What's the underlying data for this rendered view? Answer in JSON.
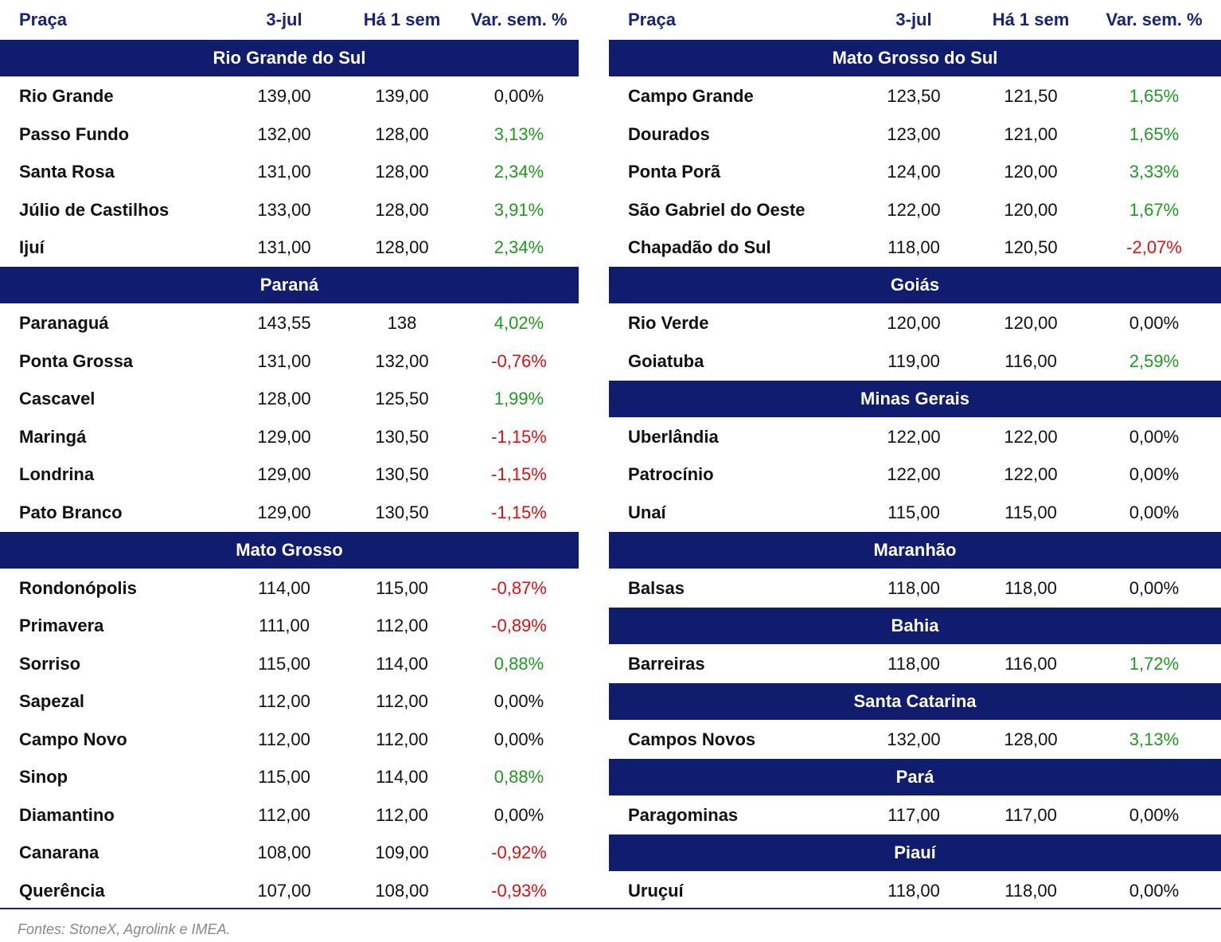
{
  "tables": [
    {
      "header": [
        "Praça",
        "3-jul",
        "Há 1 sem",
        "Var. sem. %"
      ],
      "sections": [
        {
          "title": "Rio Grande do Sul",
          "rows": [
            [
              "Rio Grande",
              "139,00",
              "139,00",
              "0,00%"
            ],
            [
              "Passo Fundo",
              "132,00",
              "128,00",
              "3,13%"
            ],
            [
              "Santa Rosa",
              "131,00",
              "128,00",
              "2,34%"
            ],
            [
              "Júlio de Castilhos",
              "133,00",
              "128,00",
              "3,91%"
            ],
            [
              "Ijuí",
              "131,00",
              "128,00",
              "2,34%"
            ]
          ]
        },
        {
          "title": "Paraná",
          "rows": [
            [
              "Paranaguá",
              "143,55",
              "138",
              "4,02%"
            ],
            [
              "Ponta Grossa",
              "131,00",
              "132,00",
              "-0,76%"
            ],
            [
              "Cascavel",
              "128,00",
              "125,50",
              "1,99%"
            ],
            [
              "Maringá",
              "129,00",
              "130,50",
              "-1,15%"
            ],
            [
              "Londrina",
              "129,00",
              "130,50",
              "-1,15%"
            ],
            [
              "Pato Branco",
              "129,00",
              "130,50",
              "-1,15%"
            ]
          ]
        },
        {
          "title": "Mato Grosso",
          "rows": [
            [
              "Rondonópolis",
              "114,00",
              "115,00",
              "-0,87%"
            ],
            [
              "Primavera",
              "111,00",
              "112,00",
              "-0,89%"
            ],
            [
              "Sorriso",
              "115,00",
              "114,00",
              "0,88%"
            ],
            [
              "Sapezal",
              "112,00",
              "112,00",
              "0,00%"
            ],
            [
              "Campo Novo",
              "112,00",
              "112,00",
              "0,00%"
            ],
            [
              "Sinop",
              "115,00",
              "114,00",
              "0,88%"
            ],
            [
              "Diamantino",
              "112,00",
              "112,00",
              "0,00%"
            ],
            [
              "Canarana",
              "108,00",
              "109,00",
              "-0,92%"
            ],
            [
              "Querência",
              "107,00",
              "108,00",
              "-0,93%"
            ]
          ]
        }
      ]
    },
    {
      "header": [
        "Praça",
        "3-jul",
        "Há 1 sem",
        "Var. sem. %"
      ],
      "sections": [
        {
          "title": "Mato Grosso do Sul",
          "rows": [
            [
              "Campo Grande",
              "123,50",
              "121,50",
              "1,65%"
            ],
            [
              "Dourados",
              "123,00",
              "121,00",
              "1,65%"
            ],
            [
              "Ponta Porã",
              "124,00",
              "120,00",
              "3,33%"
            ],
            [
              "São Gabriel do Oeste",
              "122,00",
              "120,00",
              "1,67%"
            ],
            [
              "Chapadão do Sul",
              "118,00",
              "120,50",
              "-2,07%"
            ]
          ]
        },
        {
          "title": "Goiás",
          "rows": [
            [
              "Rio Verde",
              "120,00",
              "120,00",
              "0,00%"
            ],
            [
              "Goiatuba",
              "119,00",
              "116,00",
              "2,59%"
            ]
          ]
        },
        {
          "title": "Minas Gerais",
          "rows": [
            [
              "Uberlândia",
              "122,00",
              "122,00",
              "0,00%"
            ],
            [
              "Patrocínio",
              "122,00",
              "122,00",
              "0,00%"
            ],
            [
              "Unaí",
              "115,00",
              "115,00",
              "0,00%"
            ]
          ]
        },
        {
          "title": "Maranhão",
          "rows": [
            [
              "Balsas",
              "118,00",
              "118,00",
              "0,00%"
            ]
          ]
        },
        {
          "title": "Bahia",
          "rows": [
            [
              "Barreiras",
              "118,00",
              "116,00",
              "1,72%"
            ]
          ]
        },
        {
          "title": "Santa Catarina",
          "rows": [
            [
              "Campos Novos",
              "132,00",
              "128,00",
              "3,13%"
            ]
          ]
        },
        {
          "title": "Pará",
          "rows": [
            [
              "Paragominas",
              "117,00",
              "117,00",
              "0,00%"
            ]
          ]
        },
        {
          "title": "Piauí",
          "rows": [
            [
              "Uruçuí",
              "118,00",
              "118,00",
              "0,00%"
            ]
          ]
        }
      ]
    }
  ],
  "footer": "Fontes: StoneX, Agrolink e IMEA."
}
